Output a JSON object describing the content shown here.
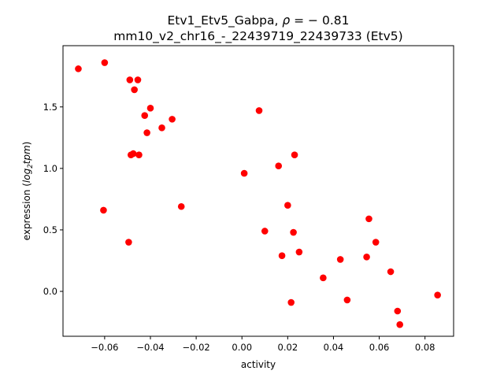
{
  "chart_data": {
    "type": "scatter",
    "title_line1": "Etv1_Etv5_Gabpa, ",
    "title_rho_symbol": "ρ",
    "title_rho_value": " = − 0.81",
    "title_line2": "mm10_v2_chr16_-_22439719_22439733 (Etv5)",
    "xlabel": "activity",
    "ylabel_prefix": "expression (",
    "ylabel_log": "log",
    "ylabel_sub": "2",
    "ylabel_tpm": "tpm",
    "ylabel_suffix": ")",
    "xlim": [
      -0.0782,
      0.0925
    ],
    "ylim": [
      -0.365,
      1.998
    ],
    "x_ticks": [
      -0.06,
      -0.04,
      -0.02,
      0.0,
      0.02,
      0.04,
      0.06,
      0.08
    ],
    "x_tick_labels": [
      "−0.06",
      "−0.04",
      "−0.02",
      "0.00",
      "0.02",
      "0.04",
      "0.06",
      "0.08"
    ],
    "y_ticks": [
      0.0,
      0.5,
      1.0,
      1.5
    ],
    "y_tick_labels": [
      "0.0",
      "0.5",
      "1.0",
      "1.5"
    ],
    "grid": false,
    "marker_color": "#ff0000",
    "points": [
      {
        "x": -0.0715,
        "y": 1.81
      },
      {
        "x": -0.06,
        "y": 1.86
      },
      {
        "x": -0.049,
        "y": 1.72
      },
      {
        "x": -0.0455,
        "y": 1.72
      },
      {
        "x": -0.047,
        "y": 1.64
      },
      {
        "x": -0.04,
        "y": 1.49
      },
      {
        "x": -0.0425,
        "y": 1.43
      },
      {
        "x": -0.0305,
        "y": 1.4
      },
      {
        "x": -0.035,
        "y": 1.33
      },
      {
        "x": -0.0415,
        "y": 1.29
      },
      {
        "x": -0.0475,
        "y": 1.12
      },
      {
        "x": -0.0485,
        "y": 1.11
      },
      {
        "x": -0.045,
        "y": 1.11
      },
      {
        "x": -0.0265,
        "y": 0.69
      },
      {
        "x": -0.0605,
        "y": 0.66
      },
      {
        "x": -0.0495,
        "y": 0.4
      },
      {
        "x": 0.0075,
        "y": 1.47
      },
      {
        "x": 0.023,
        "y": 1.11
      },
      {
        "x": 0.016,
        "y": 1.02
      },
      {
        "x": 0.001,
        "y": 0.96
      },
      {
        "x": 0.02,
        "y": 0.7
      },
      {
        "x": 0.01,
        "y": 0.49
      },
      {
        "x": 0.0225,
        "y": 0.48
      },
      {
        "x": 0.0175,
        "y": 0.29
      },
      {
        "x": 0.025,
        "y": 0.32
      },
      {
        "x": 0.0555,
        "y": 0.59
      },
      {
        "x": 0.0585,
        "y": 0.4
      },
      {
        "x": 0.043,
        "y": 0.26
      },
      {
        "x": 0.0545,
        "y": 0.28
      },
      {
        "x": 0.0355,
        "y": 0.11
      },
      {
        "x": 0.065,
        "y": 0.16
      },
      {
        "x": 0.0215,
        "y": -0.09
      },
      {
        "x": 0.046,
        "y": -0.07
      },
      {
        "x": 0.0855,
        "y": -0.03
      },
      {
        "x": 0.068,
        "y": -0.16
      },
      {
        "x": 0.069,
        "y": -0.27
      }
    ]
  }
}
